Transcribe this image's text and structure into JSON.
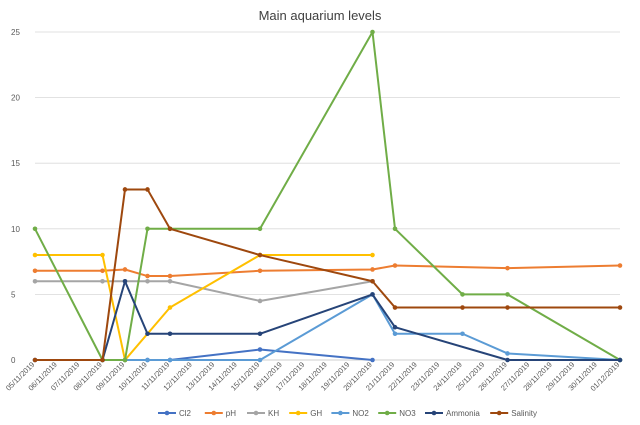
{
  "chart_data": {
    "type": "line",
    "title": "Main aquarium levels",
    "xlabel": "",
    "ylabel": "",
    "ylim": [
      0,
      25
    ],
    "yticks": [
      0,
      5,
      10,
      15,
      20,
      25
    ],
    "grid": "horizontal",
    "legend_position": "bottom",
    "categories": [
      "05/11/2019",
      "06/11/2019",
      "07/11/2019",
      "08/11/2019",
      "09/11/2019",
      "10/11/2019",
      "11/11/2019",
      "12/11/2019",
      "13/11/2019",
      "14/11/2019",
      "15/11/2019",
      "16/11/2019",
      "17/11/2019",
      "18/11/2019",
      "19/11/2019",
      "20/11/2019",
      "21/11/2019",
      "22/11/2019",
      "23/11/2019",
      "24/11/2019",
      "25/11/2019",
      "26/11/2019",
      "27/11/2019",
      "28/11/2019",
      "29/11/2019",
      "30/11/2019",
      "01/12/2019"
    ],
    "series": [
      {
        "name": "Cl2",
        "color": "#4472C4",
        "points": [
          [
            0,
            0
          ],
          [
            3,
            0
          ],
          [
            4,
            0
          ],
          [
            5,
            0
          ],
          [
            6,
            0
          ],
          [
            10,
            0.8
          ],
          [
            15,
            0
          ]
        ]
      },
      {
        "name": "pH",
        "color": "#ED7D31",
        "points": [
          [
            0,
            6.8
          ],
          [
            3,
            6.8
          ],
          [
            4,
            6.9
          ],
          [
            5,
            6.4
          ],
          [
            6,
            6.4
          ],
          [
            10,
            6.8
          ],
          [
            15,
            6.9
          ],
          [
            16,
            7.2
          ],
          [
            21,
            7.0
          ],
          [
            26,
            7.2
          ]
        ]
      },
      {
        "name": "KH",
        "color": "#A5A5A5",
        "points": [
          [
            0,
            6
          ],
          [
            3,
            6
          ],
          [
            4,
            6
          ],
          [
            5,
            6
          ],
          [
            6,
            6
          ],
          [
            10,
            4.5
          ],
          [
            15,
            6
          ]
        ]
      },
      {
        "name": "GH",
        "color": "#FFC000",
        "points": [
          [
            0,
            8
          ],
          [
            3,
            8
          ],
          [
            4,
            0
          ],
          [
            6,
            4
          ],
          [
            10,
            8
          ],
          [
            15,
            8
          ]
        ]
      },
      {
        "name": "NO2",
        "color": "#5B9BD5",
        "points": [
          [
            4,
            0
          ],
          [
            5,
            0
          ],
          [
            6,
            0
          ],
          [
            10,
            0
          ],
          [
            15,
            5
          ],
          [
            16,
            2
          ],
          [
            19,
            2
          ],
          [
            21,
            0.5
          ],
          [
            26,
            0
          ]
        ]
      },
      {
        "name": "NO3",
        "color": "#70AD47",
        "points": [
          [
            0,
            10
          ],
          [
            3,
            0
          ],
          [
            4,
            0
          ],
          [
            5,
            10
          ],
          [
            6,
            10
          ],
          [
            10,
            10
          ],
          [
            15,
            25
          ],
          [
            16,
            10
          ],
          [
            19,
            5
          ],
          [
            21,
            5
          ],
          [
            26,
            0
          ]
        ]
      },
      {
        "name": "Ammonia",
        "color": "#264478",
        "points": [
          [
            3,
            0
          ],
          [
            4,
            6
          ],
          [
            5,
            2
          ],
          [
            6,
            2
          ],
          [
            10,
            2
          ],
          [
            15,
            5
          ],
          [
            16,
            2.5
          ],
          [
            21,
            0
          ],
          [
            26,
            0
          ]
        ]
      },
      {
        "name": "Salinity",
        "color": "#9E480E",
        "points": [
          [
            0,
            0
          ],
          [
            3,
            0
          ],
          [
            4,
            13
          ],
          [
            5,
            13
          ],
          [
            6,
            10
          ],
          [
            10,
            8
          ],
          [
            15,
            6
          ],
          [
            16,
            4
          ],
          [
            19,
            4
          ],
          [
            21,
            4
          ],
          [
            26,
            4
          ]
        ]
      }
    ]
  }
}
